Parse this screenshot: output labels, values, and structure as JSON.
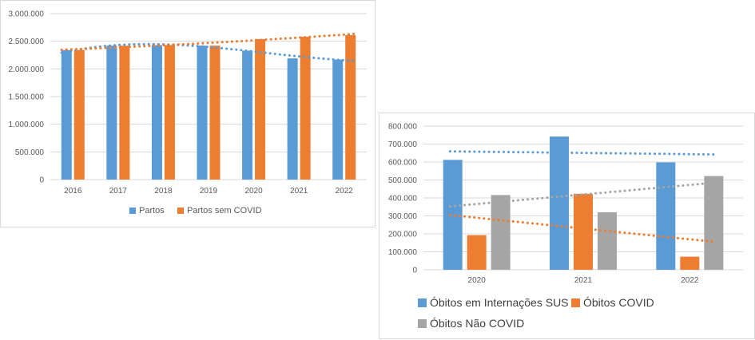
{
  "chart_data": [
    {
      "type": "bar",
      "categories": [
        "2016",
        "2017",
        "2018",
        "2019",
        "2020",
        "2021",
        "2022"
      ],
      "series": [
        {
          "name": "Partos",
          "color": "#5b9bd5",
          "values": [
            2340000,
            2420000,
            2430000,
            2420000,
            2330000,
            2190000,
            2170000
          ]
        },
        {
          "name": "Partos sem COVID",
          "color": "#ed7d31",
          "values": [
            2340000,
            2420000,
            2430000,
            2420000,
            2540000,
            2580000,
            2610000
          ]
        }
      ],
      "trendlines": [
        {
          "series": "Partos",
          "color": "#5b9bd5",
          "style": "dotted"
        },
        {
          "series": "Partos sem COVID",
          "color": "#ed7d31",
          "style": "dotted"
        }
      ],
      "yticks": [
        "0",
        "500.000",
        "1.000.000",
        "1.500.000",
        "2.000.000",
        "2.500.000",
        "3.000.000"
      ],
      "ylim": [
        0,
        3000000
      ],
      "grid": true,
      "legend": "bottom"
    },
    {
      "type": "bar",
      "categories": [
        "2020",
        "2021",
        "2022"
      ],
      "series": [
        {
          "name": "Óbitos em Internações SUS",
          "color": "#5b9bd5",
          "values": [
            612000,
            742000,
            598000
          ]
        },
        {
          "name": "Óbitos COVID",
          "color": "#ed7d31",
          "values": [
            193000,
            423000,
            73000
          ]
        },
        {
          "name": "Óbitos Não COVID",
          "color": "#a5a5a5",
          "values": [
            416000,
            320000,
            522000
          ]
        }
      ],
      "trendlines": [
        {
          "series": "Óbitos em Internações SUS",
          "color": "#5b9bd5",
          "style": "dotted"
        },
        {
          "series": "Óbitos COVID",
          "color": "#ed7d31",
          "style": "dotted"
        },
        {
          "series": "Óbitos Não COVID",
          "color": "#a5a5a5",
          "style": "dotted"
        }
      ],
      "yticks": [
        "0",
        "100.000",
        "200.000",
        "300.000",
        "400.000",
        "500.000",
        "600.000",
        "700.000",
        "800.000"
      ],
      "ylim": [
        0,
        800000
      ],
      "grid": true,
      "legend": "bottom"
    }
  ]
}
